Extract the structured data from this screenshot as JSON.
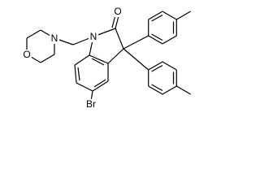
{
  "atoms": [
    {
      "label": "O"
    },
    {
      "label": "N"
    },
    {
      "label": "N"
    },
    {
      "label": "O"
    },
    {
      "label": "Br"
    }
  ]
}
